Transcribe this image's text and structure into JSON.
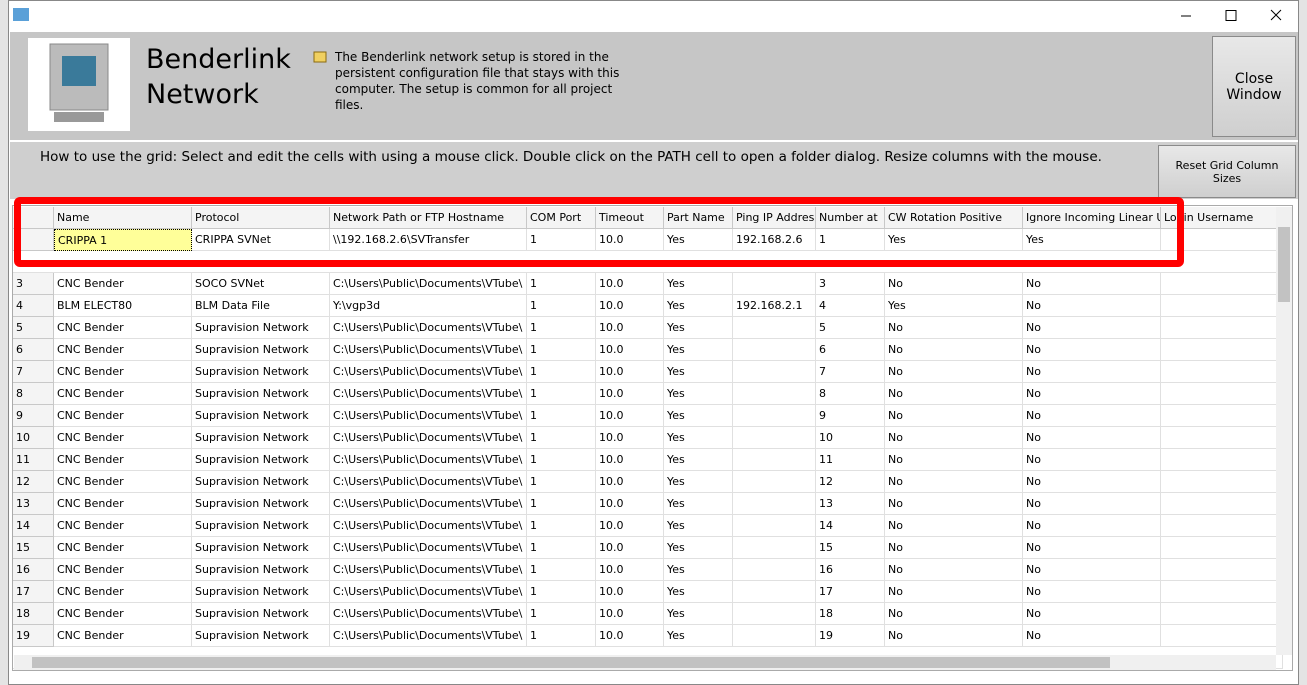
{
  "window": {
    "title": "Benderlink Network",
    "info": "The Benderlink network setup  is stored in the persistent configuration file that stays with this computer.  The setup is common for all project files.",
    "close_button": "Close Window"
  },
  "toolbar": {
    "instructions": "How to use the grid: Select and edit the cells with using a mouse click.  Double click on the PATH cell to open a folder dialog.  Resize columns with the mouse.",
    "reset_button": "Reset Grid Column Sizes"
  },
  "table": {
    "columns": [
      null,
      "Name",
      "Protocol",
      "Network Path or FTP Hostname",
      "COM Port",
      "Timeout",
      "Part Name",
      "Ping IP Address",
      "Number at",
      "CW Rotation Positive",
      "Ignore Incoming Linear Unit",
      "Login Username"
    ],
    "rows": [
      [
        null,
        "CRIPPA 1",
        "CRIPPA SVNet",
        "\\\\192.168.2.6\\SVTransfer",
        "1",
        "10.0",
        "Yes",
        "192.168.2.6",
        "1",
        "Yes",
        "Yes",
        null
      ],
      [
        "3",
        "CNC Bender",
        "SOCO SVNet",
        "C:\\Users\\Public\\Documents\\VTube\\",
        "1",
        "10.0",
        "Yes",
        null,
        "3",
        "No",
        "No",
        null
      ],
      [
        "4",
        "BLM ELECT80",
        "BLM Data File",
        "Y:\\vgp3d",
        "1",
        "10.0",
        "Yes",
        "192.168.2.1",
        "4",
        "Yes",
        "No",
        null
      ],
      [
        "5",
        "CNC Bender",
        "Supravision Network",
        "C:\\Users\\Public\\Documents\\VTube\\",
        "1",
        "10.0",
        "Yes",
        null,
        "5",
        "No",
        "No",
        null
      ],
      [
        "6",
        "CNC Bender",
        "Supravision Network",
        "C:\\Users\\Public\\Documents\\VTube\\",
        "1",
        "10.0",
        "Yes",
        null,
        "6",
        "No",
        "No",
        null
      ],
      [
        "7",
        "CNC Bender",
        "Supravision Network",
        "C:\\Users\\Public\\Documents\\VTube\\",
        "1",
        "10.0",
        "Yes",
        null,
        "7",
        "No",
        "No",
        null
      ],
      [
        "8",
        "CNC Bender",
        "Supravision Network",
        "C:\\Users\\Public\\Documents\\VTube\\",
        "1",
        "10.0",
        "Yes",
        null,
        "8",
        "No",
        "No",
        null
      ],
      [
        "9",
        "CNC Bender",
        "Supravision Network",
        "C:\\Users\\Public\\Documents\\VTube\\",
        "1",
        "10.0",
        "Yes",
        null,
        "9",
        "No",
        "No",
        null
      ],
      [
        "10",
        "CNC Bender",
        "Supravision Network",
        "C:\\Users\\Public\\Documents\\VTube\\",
        "1",
        "10.0",
        "Yes",
        null,
        "10",
        "No",
        "No",
        null
      ],
      [
        "11",
        "CNC Bender",
        "Supravision Network",
        "C:\\Users\\Public\\Documents\\VTube\\",
        "1",
        "10.0",
        "Yes",
        null,
        "11",
        "No",
        "No",
        null
      ],
      [
        "12",
        "CNC Bender",
        "Supravision Network",
        "C:\\Users\\Public\\Documents\\VTube\\",
        "1",
        "10.0",
        "Yes",
        null,
        "12",
        "No",
        "No",
        null
      ],
      [
        "13",
        "CNC Bender",
        "Supravision Network",
        "C:\\Users\\Public\\Documents\\VTube\\",
        "1",
        "10.0",
        "Yes",
        null,
        "13",
        "No",
        "No",
        null
      ],
      [
        "14",
        "CNC Bender",
        "Supravision Network",
        "C:\\Users\\Public\\Documents\\VTube\\",
        "1",
        "10.0",
        "Yes",
        null,
        "14",
        "No",
        "No",
        null
      ],
      [
        "15",
        "CNC Bender",
        "Supravision Network",
        "C:\\Users\\Public\\Documents\\VTube\\",
        "1",
        "10.0",
        "Yes",
        null,
        "15",
        "No",
        "No",
        null
      ],
      [
        "16",
        "CNC Bender",
        "Supravision Network",
        "C:\\Users\\Public\\Documents\\VTube\\",
        "1",
        "10.0",
        "Yes",
        null,
        "16",
        "No",
        "No",
        null
      ],
      [
        "17",
        "CNC Bender",
        "Supravision Network",
        "C:\\Users\\Public\\Documents\\VTube\\",
        "1",
        "10.0",
        "Yes",
        null,
        "17",
        "No",
        "No",
        null
      ],
      [
        "18",
        "CNC Bender",
        "Supravision Network",
        "C:\\Users\\Public\\Documents\\VTube\\",
        "1",
        "10.0",
        "Yes",
        null,
        "18",
        "No",
        "No",
        null
      ],
      [
        "19",
        "CNC Bender",
        "Supravision Network",
        "C:\\Users\\Public\\Documents\\VTube\\",
        "1",
        "10.0",
        "Yes",
        null,
        "19",
        "No",
        "No",
        null
      ]
    ]
  }
}
